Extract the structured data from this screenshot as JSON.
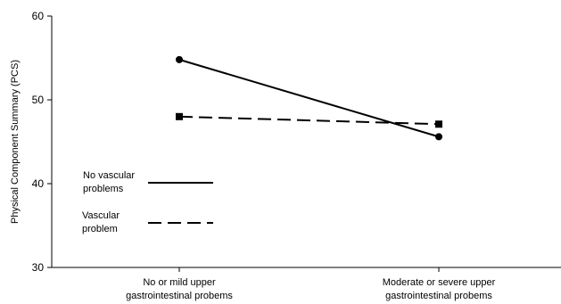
{
  "chart_data": {
    "type": "line",
    "title": "",
    "xlabel": "",
    "ylabel": "Physical Component Summary (PCS)",
    "ylim": [
      30,
      60
    ],
    "yticks": [
      30,
      40,
      50,
      60
    ],
    "grid": false,
    "categories": [
      [
        "No or mild upper",
        "gastrointestinal probems"
      ],
      [
        "Moderate or severe upper",
        "gastrointestinal probems"
      ]
    ],
    "series": [
      {
        "name": [
          "No vascular",
          "problems"
        ],
        "values": [
          54.8,
          45.6
        ],
        "line_style": "solid",
        "marker": "circle",
        "color": "#000000"
      },
      {
        "name": [
          "Vascular",
          "problem"
        ],
        "values": [
          48.0,
          47.1
        ],
        "line_style": "dashed",
        "marker": "square",
        "color": "#000000"
      }
    ],
    "legend_placement": "left-middle"
  }
}
